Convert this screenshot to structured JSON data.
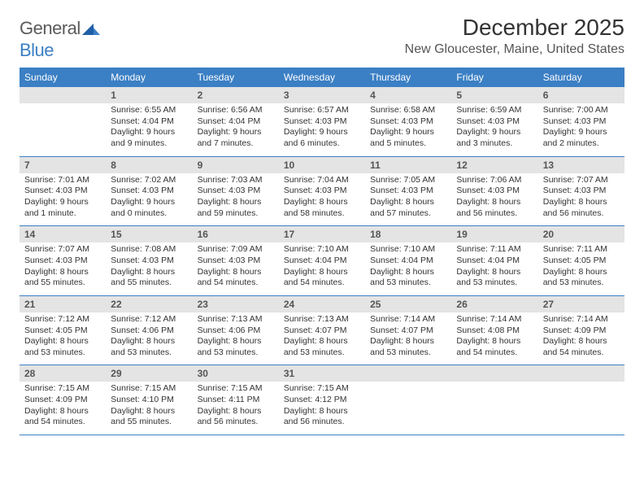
{
  "colors": {
    "header_bg": "#3b7fc4",
    "daynum_bg": "#e4e4e4",
    "text": "#333333",
    "rule": "#3b7fc4",
    "logo_gray": "#5a5a5a",
    "logo_blue": "#3b7fc4"
  },
  "logo": {
    "part1": "General",
    "part2": "Blue"
  },
  "title": "December 2025",
  "location": "New Gloucester, Maine, United States",
  "day_names": [
    "Sunday",
    "Monday",
    "Tuesday",
    "Wednesday",
    "Thursday",
    "Friday",
    "Saturday"
  ],
  "weeks": [
    [
      {
        "n": "",
        "sunrise": "",
        "sunset": "",
        "daylight": ""
      },
      {
        "n": "1",
        "sunrise": "Sunrise: 6:55 AM",
        "sunset": "Sunset: 4:04 PM",
        "daylight": "Daylight: 9 hours and 9 minutes."
      },
      {
        "n": "2",
        "sunrise": "Sunrise: 6:56 AM",
        "sunset": "Sunset: 4:04 PM",
        "daylight": "Daylight: 9 hours and 7 minutes."
      },
      {
        "n": "3",
        "sunrise": "Sunrise: 6:57 AM",
        "sunset": "Sunset: 4:03 PM",
        "daylight": "Daylight: 9 hours and 6 minutes."
      },
      {
        "n": "4",
        "sunrise": "Sunrise: 6:58 AM",
        "sunset": "Sunset: 4:03 PM",
        "daylight": "Daylight: 9 hours and 5 minutes."
      },
      {
        "n": "5",
        "sunrise": "Sunrise: 6:59 AM",
        "sunset": "Sunset: 4:03 PM",
        "daylight": "Daylight: 9 hours and 3 minutes."
      },
      {
        "n": "6",
        "sunrise": "Sunrise: 7:00 AM",
        "sunset": "Sunset: 4:03 PM",
        "daylight": "Daylight: 9 hours and 2 minutes."
      }
    ],
    [
      {
        "n": "7",
        "sunrise": "Sunrise: 7:01 AM",
        "sunset": "Sunset: 4:03 PM",
        "daylight": "Daylight: 9 hours and 1 minute."
      },
      {
        "n": "8",
        "sunrise": "Sunrise: 7:02 AM",
        "sunset": "Sunset: 4:03 PM",
        "daylight": "Daylight: 9 hours and 0 minutes."
      },
      {
        "n": "9",
        "sunrise": "Sunrise: 7:03 AM",
        "sunset": "Sunset: 4:03 PM",
        "daylight": "Daylight: 8 hours and 59 minutes."
      },
      {
        "n": "10",
        "sunrise": "Sunrise: 7:04 AM",
        "sunset": "Sunset: 4:03 PM",
        "daylight": "Daylight: 8 hours and 58 minutes."
      },
      {
        "n": "11",
        "sunrise": "Sunrise: 7:05 AM",
        "sunset": "Sunset: 4:03 PM",
        "daylight": "Daylight: 8 hours and 57 minutes."
      },
      {
        "n": "12",
        "sunrise": "Sunrise: 7:06 AM",
        "sunset": "Sunset: 4:03 PM",
        "daylight": "Daylight: 8 hours and 56 minutes."
      },
      {
        "n": "13",
        "sunrise": "Sunrise: 7:07 AM",
        "sunset": "Sunset: 4:03 PM",
        "daylight": "Daylight: 8 hours and 56 minutes."
      }
    ],
    [
      {
        "n": "14",
        "sunrise": "Sunrise: 7:07 AM",
        "sunset": "Sunset: 4:03 PM",
        "daylight": "Daylight: 8 hours and 55 minutes."
      },
      {
        "n": "15",
        "sunrise": "Sunrise: 7:08 AM",
        "sunset": "Sunset: 4:03 PM",
        "daylight": "Daylight: 8 hours and 55 minutes."
      },
      {
        "n": "16",
        "sunrise": "Sunrise: 7:09 AM",
        "sunset": "Sunset: 4:03 PM",
        "daylight": "Daylight: 8 hours and 54 minutes."
      },
      {
        "n": "17",
        "sunrise": "Sunrise: 7:10 AM",
        "sunset": "Sunset: 4:04 PM",
        "daylight": "Daylight: 8 hours and 54 minutes."
      },
      {
        "n": "18",
        "sunrise": "Sunrise: 7:10 AM",
        "sunset": "Sunset: 4:04 PM",
        "daylight": "Daylight: 8 hours and 53 minutes."
      },
      {
        "n": "19",
        "sunrise": "Sunrise: 7:11 AM",
        "sunset": "Sunset: 4:04 PM",
        "daylight": "Daylight: 8 hours and 53 minutes."
      },
      {
        "n": "20",
        "sunrise": "Sunrise: 7:11 AM",
        "sunset": "Sunset: 4:05 PM",
        "daylight": "Daylight: 8 hours and 53 minutes."
      }
    ],
    [
      {
        "n": "21",
        "sunrise": "Sunrise: 7:12 AM",
        "sunset": "Sunset: 4:05 PM",
        "daylight": "Daylight: 8 hours and 53 minutes."
      },
      {
        "n": "22",
        "sunrise": "Sunrise: 7:12 AM",
        "sunset": "Sunset: 4:06 PM",
        "daylight": "Daylight: 8 hours and 53 minutes."
      },
      {
        "n": "23",
        "sunrise": "Sunrise: 7:13 AM",
        "sunset": "Sunset: 4:06 PM",
        "daylight": "Daylight: 8 hours and 53 minutes."
      },
      {
        "n": "24",
        "sunrise": "Sunrise: 7:13 AM",
        "sunset": "Sunset: 4:07 PM",
        "daylight": "Daylight: 8 hours and 53 minutes."
      },
      {
        "n": "25",
        "sunrise": "Sunrise: 7:14 AM",
        "sunset": "Sunset: 4:07 PM",
        "daylight": "Daylight: 8 hours and 53 minutes."
      },
      {
        "n": "26",
        "sunrise": "Sunrise: 7:14 AM",
        "sunset": "Sunset: 4:08 PM",
        "daylight": "Daylight: 8 hours and 54 minutes."
      },
      {
        "n": "27",
        "sunrise": "Sunrise: 7:14 AM",
        "sunset": "Sunset: 4:09 PM",
        "daylight": "Daylight: 8 hours and 54 minutes."
      }
    ],
    [
      {
        "n": "28",
        "sunrise": "Sunrise: 7:15 AM",
        "sunset": "Sunset: 4:09 PM",
        "daylight": "Daylight: 8 hours and 54 minutes."
      },
      {
        "n": "29",
        "sunrise": "Sunrise: 7:15 AM",
        "sunset": "Sunset: 4:10 PM",
        "daylight": "Daylight: 8 hours and 55 minutes."
      },
      {
        "n": "30",
        "sunrise": "Sunrise: 7:15 AM",
        "sunset": "Sunset: 4:11 PM",
        "daylight": "Daylight: 8 hours and 56 minutes."
      },
      {
        "n": "31",
        "sunrise": "Sunrise: 7:15 AM",
        "sunset": "Sunset: 4:12 PM",
        "daylight": "Daylight: 8 hours and 56 minutes."
      },
      {
        "n": "",
        "sunrise": "",
        "sunset": "",
        "daylight": ""
      },
      {
        "n": "",
        "sunrise": "",
        "sunset": "",
        "daylight": ""
      },
      {
        "n": "",
        "sunrise": "",
        "sunset": "",
        "daylight": ""
      }
    ]
  ]
}
